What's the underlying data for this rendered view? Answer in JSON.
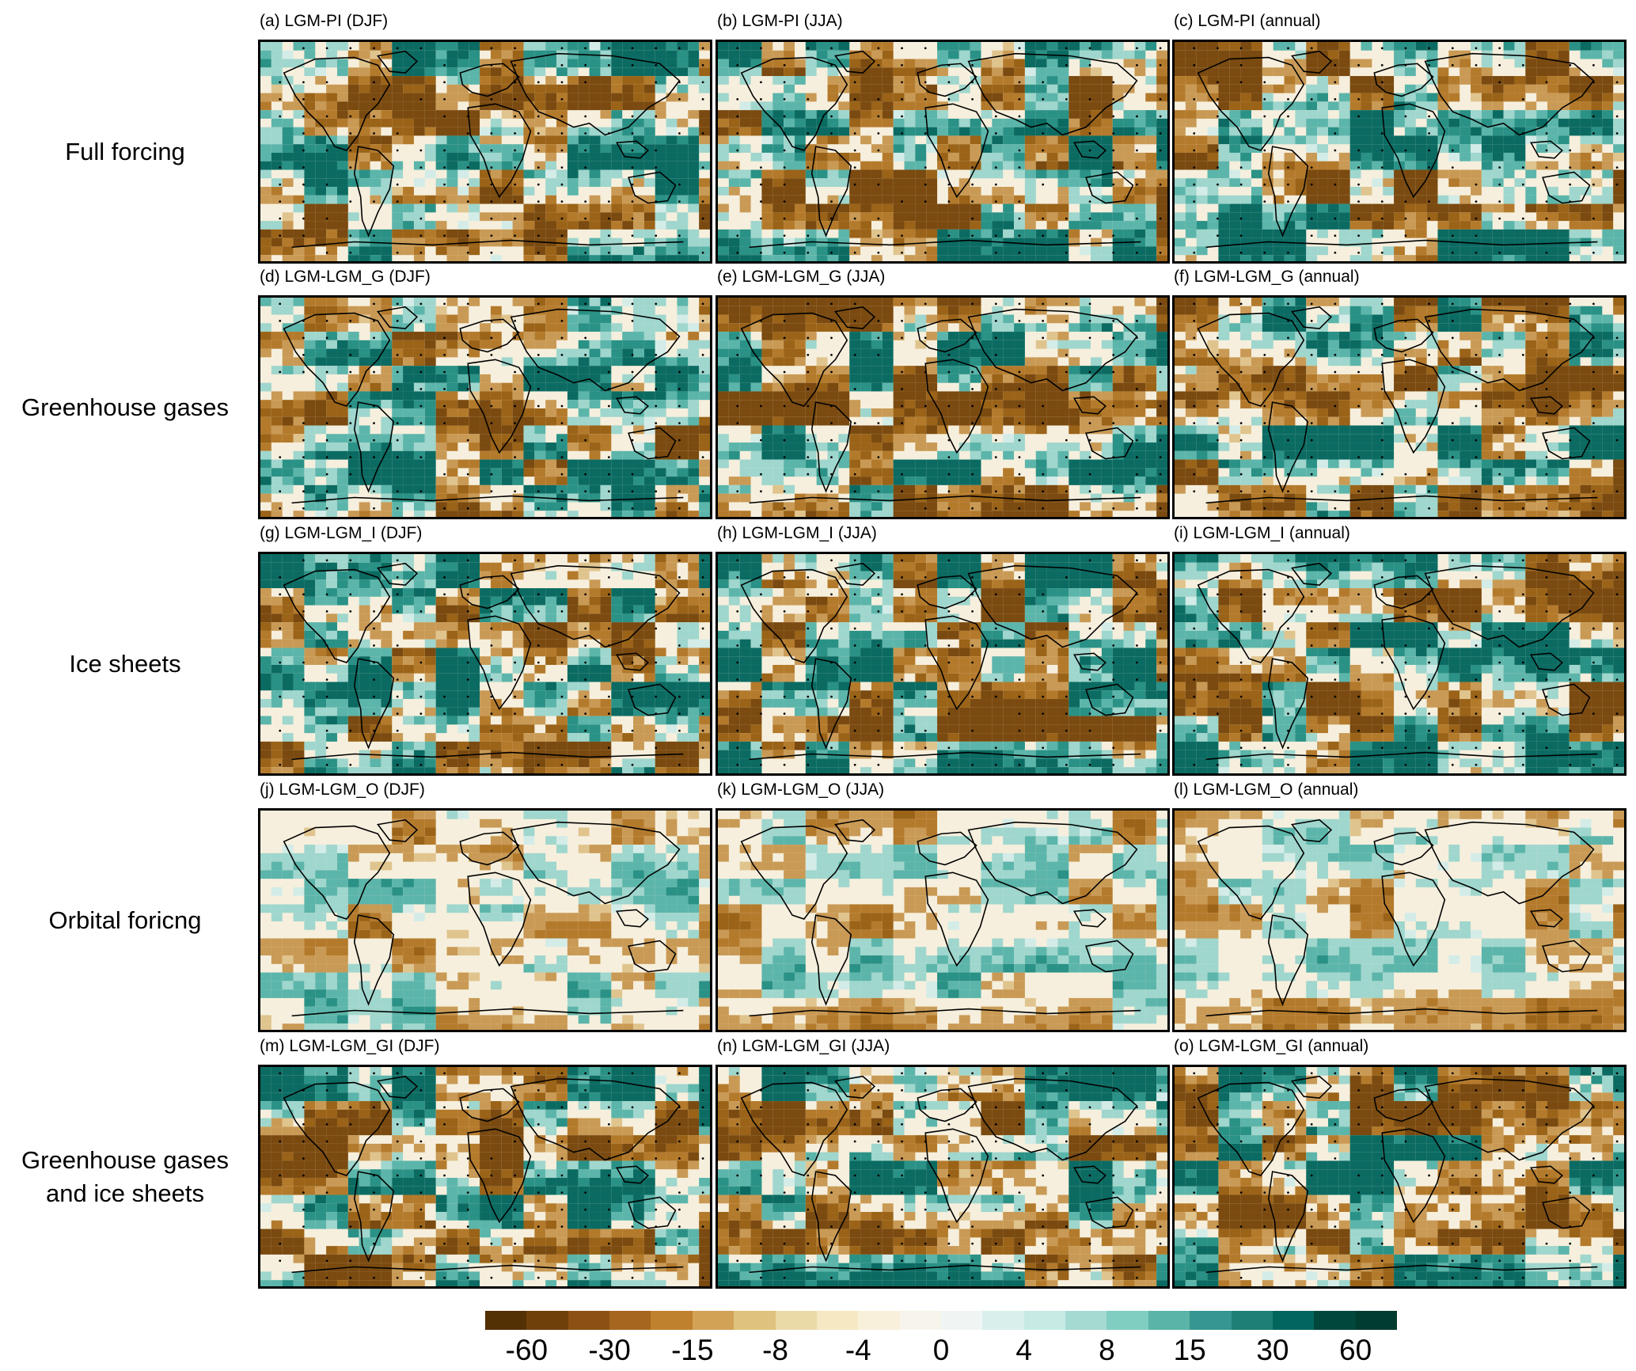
{
  "rows": [
    {
      "label_lines": [
        "Full forcing"
      ],
      "panels": [
        "(a) LGM-PI (DJF)",
        "(b) LGM-PI (JJA)",
        "(c) LGM-PI (annual)"
      ]
    },
    {
      "label_lines": [
        "Greenhouse gases"
      ],
      "panels": [
        "(d) LGM-LGM_G (DJF)",
        "(e) LGM-LGM_G (JJA)",
        "(f) LGM-LGM_G (annual)"
      ]
    },
    {
      "label_lines": [
        "Ice sheets"
      ],
      "panels": [
        "(g) LGM-LGM_I (DJF)",
        "(h) LGM-LGM_I (JJA)",
        "(i) LGM-LGM_I (annual)"
      ]
    },
    {
      "label_lines": [
        "Orbital foricng"
      ],
      "panels": [
        "(j) LGM-LGM_O (DJF)",
        "(k) LGM-LGM_O (JJA)",
        "(l) LGM-LGM_O (annual)"
      ]
    },
    {
      "label_lines": [
        "Greenhouse gases",
        "and ice sheets"
      ],
      "panels": [
        "(m) LGM-LGM_GI (DJF)",
        "(n) LGM-LGM_GI (JJA)",
        "(o) LGM-LGM_GI (annual)"
      ]
    }
  ],
  "colorbar": {
    "labels": [
      "-60",
      "-30",
      "-15",
      "-8",
      "-4",
      "0",
      "4",
      "8",
      "15",
      "30",
      "60"
    ],
    "colors": [
      "#543005",
      "#70400b",
      "#8c5112",
      "#a6661f",
      "#bf812d",
      "#d2a257",
      "#dfc27d",
      "#eadaa8",
      "#f6e8c3",
      "#f9f0dc",
      "#f7f4ec",
      "#f0f5f4",
      "#d8efec",
      "#c7eae5",
      "#a4dad2",
      "#80cdc1",
      "#5ab4a8",
      "#35978f",
      "#1d7f76",
      "#01665e",
      "#01473c",
      "#003c30"
    ]
  }
}
